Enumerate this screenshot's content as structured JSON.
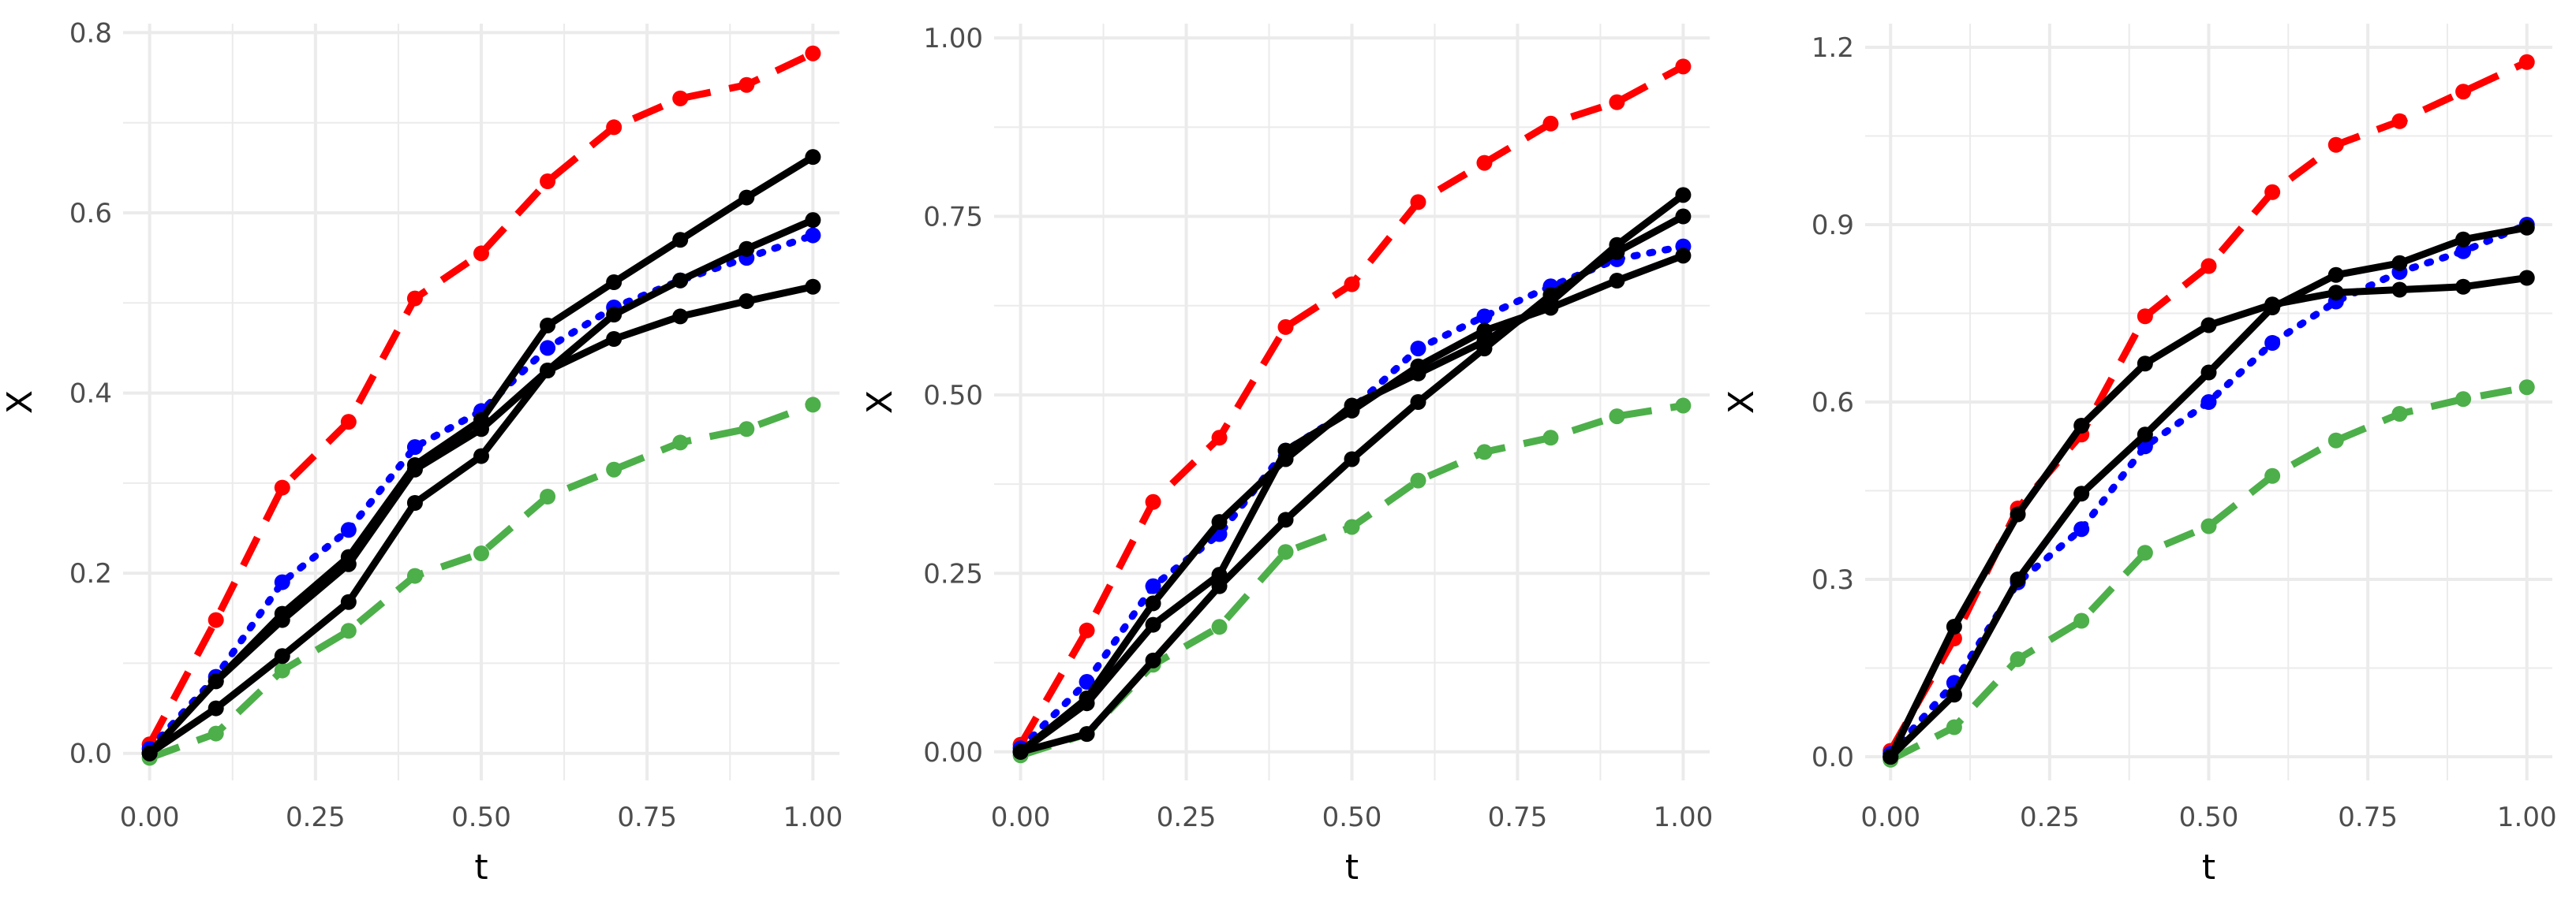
{
  "colors": {
    "upper": "#ff0000",
    "mean": "#0000ff",
    "lower": "#4daf4a",
    "sample": "#000000",
    "grid": "#ebebeb",
    "tick_text": "#4d4d4d"
  },
  "chart_data": [
    {
      "type": "line",
      "xlabel": "t",
      "ylabel": "X",
      "xlim": [
        -0.04,
        1.04
      ],
      "ylim": [
        -0.03,
        0.81
      ],
      "x_ticks": [
        0,
        0.25,
        0.5,
        0.75,
        1
      ],
      "x_tick_labels": [
        "0.00",
        "0.25",
        "0.50",
        "0.75",
        "1.00"
      ],
      "y_ticks": [
        0,
        0.2,
        0.4,
        0.6,
        0.8
      ],
      "y_tick_labels": [
        "0.0",
        "0.2",
        "0.4",
        "0.6",
        "0.8"
      ],
      "x": [
        0,
        0.1,
        0.2,
        0.3,
        0.4,
        0.5,
        0.6,
        0.7,
        0.8,
        0.9,
        1.0
      ],
      "series": [
        {
          "role": "upper",
          "line": "dashed",
          "values": [
            0.01,
            0.148,
            0.295,
            0.368,
            0.505,
            0.555,
            0.635,
            0.695,
            0.727,
            0.742,
            0.777
          ]
        },
        {
          "role": "lower",
          "line": "dashed",
          "values": [
            -0.005,
            0.022,
            0.092,
            0.136,
            0.197,
            0.222,
            0.285,
            0.315,
            0.345,
            0.36,
            0.387
          ]
        },
        {
          "role": "mean",
          "line": "dotted",
          "values": [
            0.005,
            0.085,
            0.19,
            0.248,
            0.34,
            0.38,
            0.45,
            0.495,
            0.525,
            0.55,
            0.575
          ]
        },
        {
          "role": "sample",
          "line": "solid",
          "values": [
            0.0,
            0.08,
            0.155,
            0.218,
            0.32,
            0.37,
            0.475,
            0.523,
            0.57,
            0.617,
            0.662
          ]
        },
        {
          "role": "sample",
          "line": "solid",
          "values": [
            0.0,
            0.08,
            0.148,
            0.21,
            0.315,
            0.36,
            0.425,
            0.487,
            0.525,
            0.56,
            0.592
          ]
        },
        {
          "role": "sample",
          "line": "solid",
          "values": [
            0.0,
            0.05,
            0.108,
            0.168,
            0.278,
            0.33,
            0.425,
            0.46,
            0.485,
            0.502,
            0.518
          ]
        }
      ]
    },
    {
      "type": "line",
      "xlabel": "t",
      "ylabel": "X",
      "xlim": [
        -0.04,
        1.04
      ],
      "ylim": [
        -0.04,
        1.02
      ],
      "x_ticks": [
        0,
        0.25,
        0.5,
        0.75,
        1
      ],
      "x_tick_labels": [
        "0.00",
        "0.25",
        "0.50",
        "0.75",
        "1.00"
      ],
      "y_ticks": [
        0,
        0.25,
        0.5,
        0.75,
        1
      ],
      "y_tick_labels": [
        "0.00",
        "0.25",
        "0.50",
        "0.75",
        "1.00"
      ],
      "x": [
        0,
        0.1,
        0.2,
        0.3,
        0.4,
        0.5,
        0.6,
        0.7,
        0.8,
        0.9,
        1.0
      ],
      "series": [
        {
          "role": "upper",
          "line": "dashed",
          "values": [
            0.01,
            0.17,
            0.35,
            0.44,
            0.595,
            0.655,
            0.77,
            0.825,
            0.88,
            0.91,
            0.96
          ]
        },
        {
          "role": "lower",
          "line": "dashed",
          "values": [
            -0.005,
            0.025,
            0.122,
            0.175,
            0.28,
            0.315,
            0.38,
            0.42,
            0.44,
            0.47,
            0.485
          ]
        },
        {
          "role": "mean",
          "line": "dotted",
          "values": [
            0.005,
            0.098,
            0.232,
            0.305,
            0.422,
            0.48,
            0.565,
            0.61,
            0.652,
            0.69,
            0.708
          ]
        },
        {
          "role": "sample",
          "line": "solid",
          "values": [
            0.0,
            0.075,
            0.208,
            0.322,
            0.41,
            0.485,
            0.53,
            0.575,
            0.63,
            0.71,
            0.78
          ]
        },
        {
          "role": "sample",
          "line": "solid",
          "values": [
            0.0,
            0.068,
            0.178,
            0.248,
            0.422,
            0.478,
            0.54,
            0.59,
            0.622,
            0.66,
            0.695
          ]
        },
        {
          "role": "sample",
          "line": "solid",
          "values": [
            0.0,
            0.025,
            0.128,
            0.232,
            0.325,
            0.41,
            0.49,
            0.565,
            0.64,
            0.7,
            0.75
          ]
        }
      ]
    },
    {
      "type": "line",
      "xlabel": "t",
      "ylabel": "X",
      "xlim": [
        -0.04,
        1.04
      ],
      "ylim": [
        -0.04,
        1.24
      ],
      "x_ticks": [
        0,
        0.25,
        0.5,
        0.75,
        1
      ],
      "x_tick_labels": [
        "0.00",
        "0.25",
        "0.50",
        "0.75",
        "1.00"
      ],
      "y_ticks": [
        0,
        0.3,
        0.6,
        0.9,
        1.2
      ],
      "y_tick_labels": [
        "0.0",
        "0.3",
        "0.6",
        "0.9",
        "1.2"
      ],
      "x": [
        0,
        0.1,
        0.2,
        0.3,
        0.4,
        0.5,
        0.6,
        0.7,
        0.8,
        0.9,
        1.0
      ],
      "series": [
        {
          "role": "upper",
          "line": "dashed",
          "values": [
            0.01,
            0.2,
            0.42,
            0.545,
            0.745,
            0.83,
            0.955,
            1.035,
            1.075,
            1.125,
            1.175
          ]
        },
        {
          "role": "lower",
          "line": "dashed",
          "values": [
            -0.005,
            0.05,
            0.165,
            0.23,
            0.345,
            0.39,
            0.475,
            0.535,
            0.58,
            0.605,
            0.625
          ]
        },
        {
          "role": "mean",
          "line": "dotted",
          "values": [
            0.005,
            0.125,
            0.295,
            0.385,
            0.525,
            0.6,
            0.7,
            0.77,
            0.82,
            0.855,
            0.9
          ]
        },
        {
          "role": "sample",
          "line": "solid",
          "values": [
            0.0,
            0.22,
            0.41,
            0.56,
            0.665,
            0.73,
            0.765,
            0.785,
            0.79,
            0.795,
            0.81
          ]
        },
        {
          "role": "sample",
          "line": "solid",
          "values": [
            0.0,
            0.105,
            0.3,
            0.445,
            0.545,
            0.65,
            0.76,
            0.815,
            0.835,
            0.875,
            0.895
          ]
        }
      ]
    }
  ]
}
